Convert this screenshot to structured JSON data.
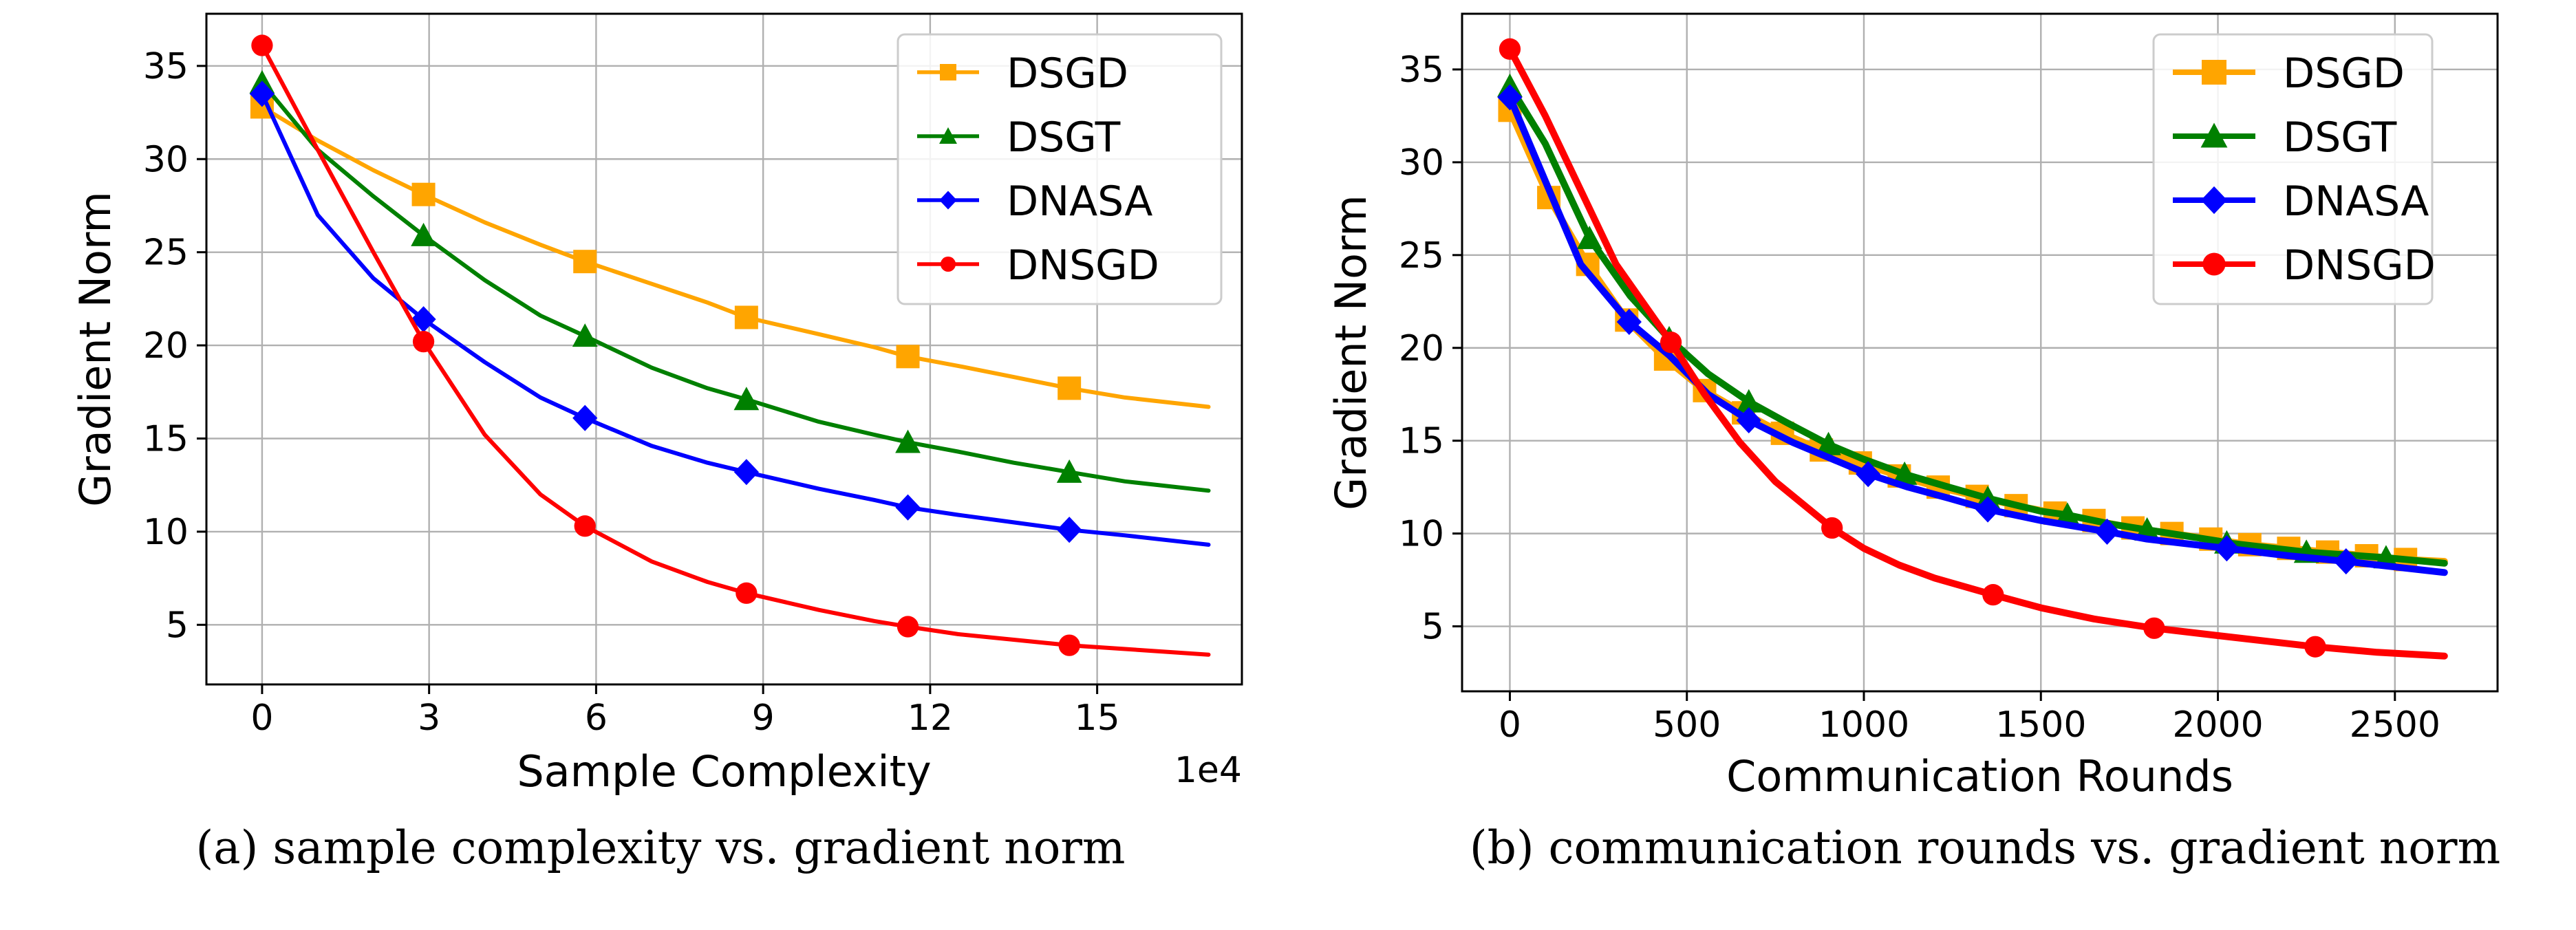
{
  "chart_data": [
    {
      "type": "line",
      "caption": "(a) sample complexity vs. gradient norm",
      "xlabel": "Sample Complexity",
      "ylabel": "Gradient Norm",
      "x_offset_label": "1e4",
      "xlim": [
        -1.0,
        17.6
      ],
      "ylim": [
        1.8,
        37.8
      ],
      "xticks": [
        0,
        3,
        6,
        9,
        12,
        15
      ],
      "xtick_labels": [
        "0",
        "3",
        "6",
        "9",
        "12",
        "15"
      ],
      "yticks": [
        5,
        10,
        15,
        20,
        25,
        30,
        35
      ],
      "ytick_labels": [
        "5",
        "10",
        "15",
        "20",
        "25",
        "30",
        "35"
      ],
      "grid": true,
      "legend": "top-right",
      "series": [
        {
          "name": "DSGD",
          "color": "#ffa500",
          "marker": "square",
          "x": [
            0,
            1,
            2,
            2.9,
            4,
            5,
            5.8,
            7,
            8,
            8.7,
            10,
            11,
            11.6,
            12.5,
            13.5,
            14.5,
            15.5,
            17
          ],
          "y": [
            32.8,
            31.0,
            29.4,
            28.1,
            26.6,
            25.4,
            24.5,
            23.3,
            22.3,
            21.5,
            20.6,
            19.9,
            19.4,
            18.9,
            18.3,
            17.7,
            17.2,
            16.7
          ],
          "markers_at": [
            0,
            2.9,
            5.8,
            8.7,
            11.6,
            14.5
          ]
        },
        {
          "name": "DSGT",
          "color": "#008000",
          "marker": "triangle-up",
          "x": [
            0,
            1,
            2,
            2.9,
            4,
            5,
            5.8,
            7,
            8,
            8.7,
            10,
            11,
            11.6,
            12.5,
            13.5,
            14.5,
            15.5,
            17
          ],
          "y": [
            34.1,
            30.5,
            28.0,
            25.9,
            23.5,
            21.6,
            20.5,
            18.8,
            17.7,
            17.1,
            15.9,
            15.2,
            14.8,
            14.3,
            13.7,
            13.2,
            12.7,
            12.2
          ],
          "markers_at": [
            0,
            2.9,
            5.8,
            8.7,
            11.6,
            14.5
          ]
        },
        {
          "name": "DNASA",
          "color": "#0000ff",
          "marker": "diamond",
          "x": [
            0,
            1,
            2,
            2.9,
            4,
            5,
            5.8,
            7,
            8,
            8.7,
            10,
            11,
            11.6,
            12.5,
            13.5,
            14.5,
            15.5,
            17
          ],
          "y": [
            33.5,
            27.0,
            23.6,
            21.4,
            19.1,
            17.2,
            16.1,
            14.6,
            13.7,
            13.2,
            12.3,
            11.7,
            11.3,
            10.9,
            10.5,
            10.1,
            9.8,
            9.3
          ],
          "markers_at": [
            0,
            2.9,
            5.8,
            8.7,
            11.6,
            14.5
          ]
        },
        {
          "name": "DNSGD",
          "color": "#ff0000",
          "marker": "circle",
          "x": [
            0,
            1,
            2,
            2.9,
            4,
            5,
            5.8,
            7,
            8,
            8.7,
            10,
            11,
            11.6,
            12.5,
            13.5,
            14.5,
            15.5,
            17
          ],
          "y": [
            36.1,
            30.5,
            25.0,
            20.2,
            15.2,
            12.0,
            10.3,
            8.4,
            7.3,
            6.7,
            5.8,
            5.2,
            4.9,
            4.5,
            4.2,
            3.9,
            3.7,
            3.4
          ],
          "markers_at": [
            0,
            2.9,
            5.8,
            8.7,
            11.6,
            14.5
          ]
        }
      ]
    },
    {
      "type": "line",
      "caption": "(b) communication rounds vs. gradient norm",
      "xlabel": "Communication Rounds",
      "ylabel": "Gradient Norm",
      "x_offset_label": "",
      "xlim": [
        -135,
        2790
      ],
      "ylim": [
        1.5,
        38.0
      ],
      "xticks": [
        0,
        500,
        1000,
        1500,
        2000,
        2500
      ],
      "xtick_labels": [
        "0",
        "500",
        "1000",
        "1500",
        "2000",
        "2500"
      ],
      "yticks": [
        5,
        10,
        15,
        20,
        25,
        30,
        35
      ],
      "ytick_labels": [
        "5",
        "10",
        "15",
        "20",
        "25",
        "30",
        "35"
      ],
      "grid": true,
      "legend": "top-right",
      "series": [
        {
          "name": "DSGD",
          "color": "#ffa500",
          "marker": "square",
          "x": [
            0,
            110,
            220,
            330,
            440,
            550,
            660,
            770,
            880,
            990,
            1100,
            1210,
            1320,
            1430,
            1540,
            1650,
            1760,
            1870,
            1980,
            2090,
            2200,
            2310,
            2420,
            2530,
            2640
          ],
          "y": [
            32.8,
            28.1,
            24.5,
            21.5,
            19.4,
            17.7,
            16.5,
            15.4,
            14.5,
            13.8,
            13.1,
            12.5,
            12.0,
            11.5,
            11.1,
            10.7,
            10.3,
            10.0,
            9.7,
            9.4,
            9.2,
            9.0,
            8.8,
            8.6,
            8.5
          ],
          "markers_at": [
            0,
            110,
            220,
            330,
            440,
            550,
            660,
            770,
            880,
            990,
            1100,
            1210,
            1320,
            1430,
            1540,
            1650,
            1760,
            1870,
            1980,
            2090,
            2200,
            2310,
            2420,
            2530
          ]
        },
        {
          "name": "DSGT",
          "color": "#008000",
          "marker": "triangle-up",
          "x": [
            0,
            100,
            225,
            340,
            450,
            560,
            675,
            780,
            900,
            1000,
            1115,
            1240,
            1350,
            1500,
            1575,
            1700,
            1800,
            2000,
            2025,
            2250,
            2475,
            2640
          ],
          "y": [
            34.1,
            31.0,
            25.9,
            22.8,
            20.5,
            18.6,
            17.1,
            16.0,
            14.8,
            14.0,
            13.2,
            12.5,
            11.9,
            11.2,
            11.0,
            10.5,
            10.2,
            9.6,
            9.5,
            9.0,
            8.7,
            8.4
          ],
          "markers_at": [
            0,
            225,
            450,
            675,
            900,
            1115,
            1350,
            1575,
            1800,
            2025,
            2250,
            2475
          ]
        },
        {
          "name": "DNASA",
          "color": "#0000ff",
          "marker": "diamond",
          "x": [
            0,
            100,
            200,
            337,
            450,
            560,
            675,
            800,
            900,
            1012,
            1125,
            1240,
            1350,
            1500,
            1687,
            1800,
            2025,
            2200,
            2362,
            2500,
            2640
          ],
          "y": [
            33.5,
            29.0,
            24.5,
            21.4,
            19.6,
            17.5,
            16.1,
            14.9,
            14.1,
            13.2,
            12.5,
            11.9,
            11.3,
            10.7,
            10.1,
            9.7,
            9.2,
            8.8,
            8.5,
            8.2,
            7.9
          ],
          "markers_at": [
            0,
            337,
            675,
            1012,
            1350,
            1687,
            2025,
            2362
          ]
        },
        {
          "name": "DNSGD",
          "color": "#ff0000",
          "marker": "circle",
          "x": [
            0,
            100,
            200,
            300,
            455,
            550,
            650,
            750,
            910,
            1000,
            1100,
            1200,
            1365,
            1500,
            1650,
            1820,
            2000,
            2275,
            2450,
            2640
          ],
          "y": [
            36.1,
            32.5,
            28.5,
            24.5,
            20.3,
            17.5,
            14.9,
            12.8,
            10.3,
            9.2,
            8.3,
            7.6,
            6.7,
            6.0,
            5.4,
            4.9,
            4.5,
            3.9,
            3.6,
            3.4
          ],
          "markers_at": [
            0,
            455,
            910,
            1365,
            1820,
            2275
          ]
        }
      ]
    }
  ]
}
